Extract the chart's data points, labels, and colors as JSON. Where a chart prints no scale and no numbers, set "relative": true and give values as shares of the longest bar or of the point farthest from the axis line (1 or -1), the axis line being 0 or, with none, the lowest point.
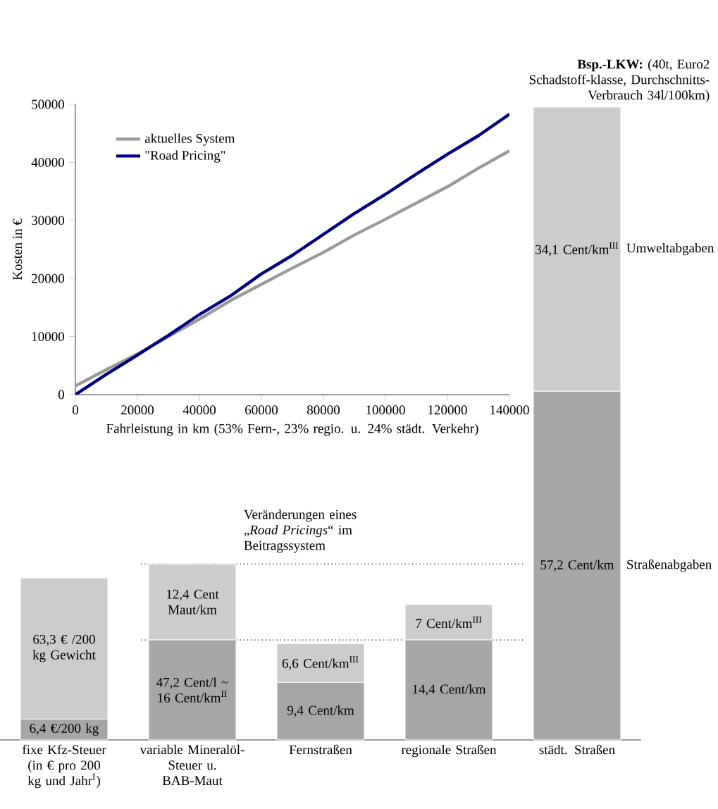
{
  "chart_data": [
    {
      "type": "line",
      "xlabel": "Fahrleistung in km (53% Fern-, 23% regio. u. 24% städt. Verkehr)",
      "ylabel": "Kosten in €",
      "x": [
        0,
        10000,
        20000,
        30000,
        40000,
        50000,
        60000,
        70000,
        80000,
        90000,
        100000,
        110000,
        120000,
        130000,
        140000
      ],
      "series": [
        {
          "name": "aktuelles System",
          "color": "#999999",
          "values": [
            1500,
            4300,
            7000,
            10000,
            13000,
            16200,
            19000,
            21800,
            24500,
            27500,
            30200,
            33000,
            35800,
            39000,
            42000
          ]
        },
        {
          "name": "\"Road Pricing\"",
          "color": "#000080",
          "values": [
            0,
            3500,
            6800,
            10200,
            13800,
            17000,
            20800,
            24000,
            27600,
            31200,
            34500,
            38000,
            41400,
            44600,
            48300
          ]
        }
      ],
      "xlim": [
        0,
        140000
      ],
      "ylim": [
        0,
        50000
      ],
      "xticks": [
        0,
        20000,
        40000,
        60000,
        80000,
        100000,
        120000,
        140000
      ],
      "yticks": [
        0,
        10000,
        20000,
        30000,
        40000,
        50000
      ],
      "legend": "top left",
      "grid": false,
      "marker": "none",
      "line_style": "solid"
    },
    {
      "type": "bar",
      "stacked": true,
      "relative": true,
      "title": "**Bsp.-LKW:** (40t, Euro2 Schadstoff-klasse, Durchschnitts-Verbrauch 34l/100km)",
      "categories": [
        "fixe Kfz-Steuer (in € pro 200 kg und Jahr$^{I}$)",
        "variable Mineralöl-Steuer u. BAB-Maut",
        "Fernstraßen",
        "regionale Straßen",
        "städt. Straßen"
      ],
      "series": [
        {
          "name": "Straßenabgaben",
          "color": "#a6a6a6",
          "values": [
            0.033,
            0.158,
            0.091,
            0.158,
            0.551
          ]
        },
        {
          "name": "Umweltabgaben",
          "color": "#cccccc",
          "values": [
            0.223,
            0.12,
            0.061,
            0.056,
            0.449
          ]
        }
      ],
      "ref_lines": [
        {
          "axis": "y",
          "value": 0.278,
          "line_style": "dotted"
        },
        {
          "axis": "y",
          "value": 0.158,
          "line_style": "dotted"
        }
      ],
      "annotations": [
        "Veränderungen eines „*Road Pricings*“ im Beitragssystem",
        "6,4 €/200 kg",
        "47,2 Cent/l ~ 16 Cent/km$^{II}$",
        "9,4 Cent/km",
        "14,4 Cent/km",
        "57,2 Cent/km",
        "63,3 € /200 kg Gewicht",
        "12,4 Cent Maut/km",
        "6,6 Cent/km$^{III}$",
        "7 Cent/km$^{III}$",
        "34,1 Cent/km$^{III}$"
      ]
    }
  ]
}
